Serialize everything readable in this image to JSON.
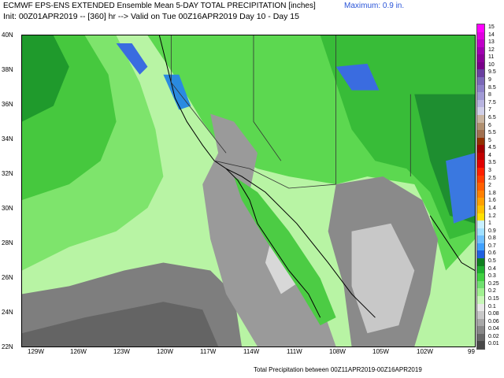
{
  "header": {
    "line1": "ECMWF EPS-ENS EXTENDED Ensemble Mean 5-DAY TOTAL PRECIPITATION [inches]",
    "line2": "Init: 00Z01APR2019 -- [360] hr --> Valid on Tue 00Z16APR2019  Day 10 - Day 15",
    "maximum": "Maximum: 0.9 in."
  },
  "axes": {
    "lat_labels": [
      "40N",
      "38N",
      "36N",
      "34N",
      "32N",
      "30N",
      "28N",
      "26N",
      "24N",
      "22N"
    ],
    "lon_labels": [
      "129W",
      "126W",
      "123W",
      "120W",
      "117W",
      "114W",
      "111W",
      "108W",
      "105W",
      "102W",
      "99"
    ]
  },
  "legend": {
    "labels": [
      "15",
      "14",
      "13",
      "12",
      "11",
      "10",
      "9.5",
      "9",
      "8.5",
      "8",
      "7.5",
      "7",
      "6.5",
      "6",
      "5.5",
      "5",
      "4.5",
      "4",
      "3.5",
      "3",
      "2.5",
      "2",
      "1.8",
      "1.6",
      "1.4",
      "1.2",
      "1",
      "0.9",
      "0.8",
      "0.7",
      "0.6",
      "0.5",
      "0.4",
      "0.3",
      "0.25",
      "0.2",
      "0.15",
      "0.1",
      "0.08",
      "0.06",
      "0.04",
      "0.02",
      "0.01"
    ],
    "colors": [
      "#ff00ff",
      "#e000e0",
      "#c000c8",
      "#a000b0",
      "#8a0098",
      "#780088",
      "#6a3fa0",
      "#7b68b8",
      "#8c80c8",
      "#a09ad4",
      "#b8b4e0",
      "#d0cfe8",
      "#c8b4a0",
      "#b09070",
      "#a07050",
      "#903000",
      "#a00000",
      "#c00000",
      "#e00000",
      "#ff2000",
      "#ff4000",
      "#ff6000",
      "#ff8000",
      "#ffa000",
      "#ffc000",
      "#ffe000",
      "#c8f0ff",
      "#a0e0ff",
      "#70c0ff",
      "#40a0ff",
      "#2060e0",
      "#108020",
      "#20b030",
      "#40d040",
      "#70e070",
      "#a0f090",
      "#c8f8b8",
      "#e8e8e8",
      "#c8c8c8",
      "#a8a8a8",
      "#888888",
      "#686868",
      "#484848"
    ]
  },
  "footer": "Total Precipitation between 00Z11APR2019-00Z16APR2019"
}
